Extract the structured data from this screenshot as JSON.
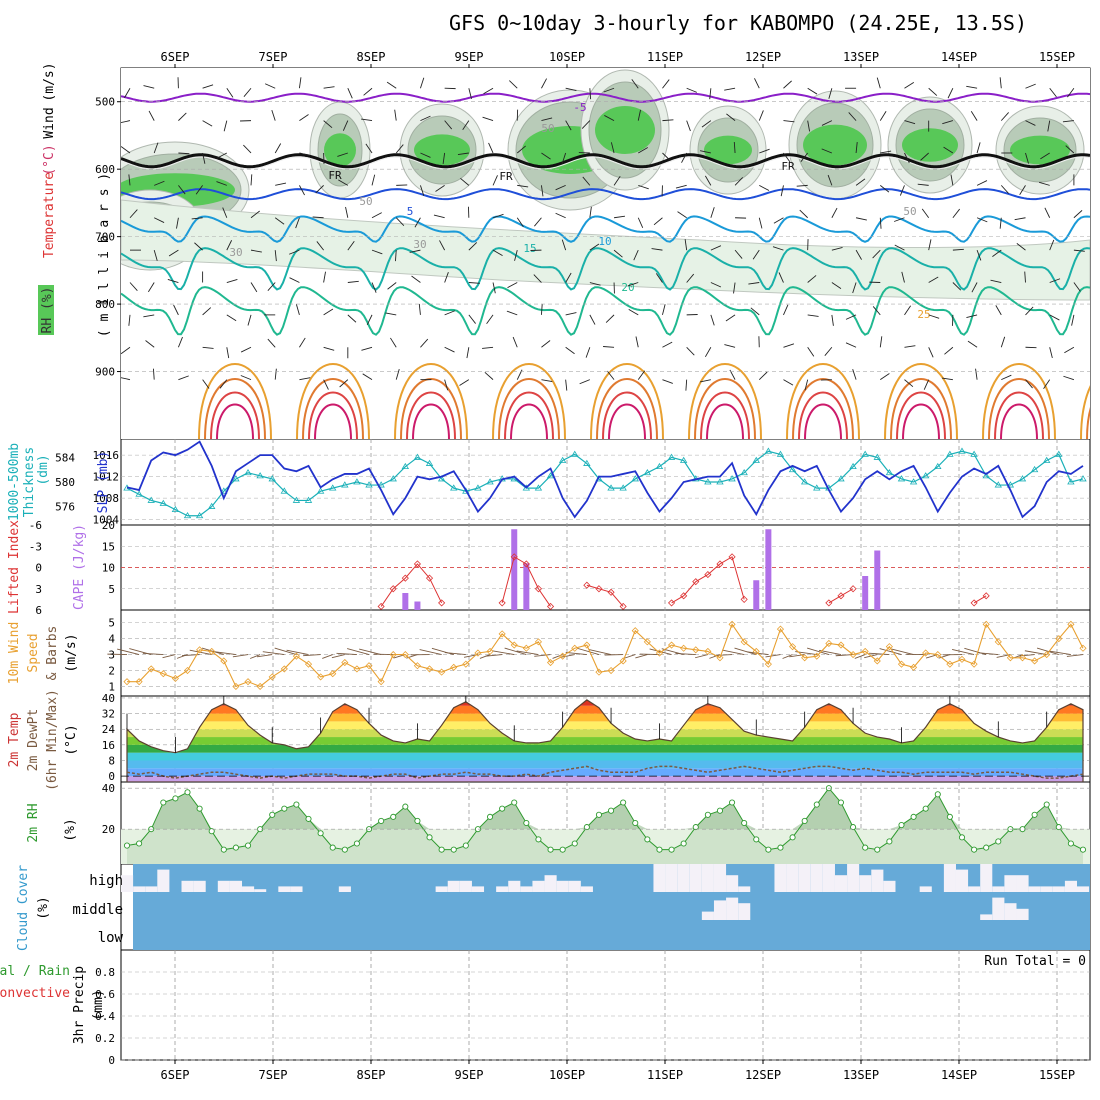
{
  "title": "GFS 0~10day 3-hourly for KABOMPO (24.25E, 13.5S)",
  "date_labels": [
    "6SEP",
    "7SEP",
    "8SEP",
    "9SEP",
    "10SEP",
    "11SEP",
    "12SEP",
    "13SEP",
    "14SEP",
    "15SEP"
  ],
  "colors": {
    "cyan": "#1ab0b8",
    "blue": "#2233cc",
    "purple_cape": "#b070e8",
    "red": "#dd3333",
    "orange": "#e8a030",
    "brown": "#7a5a40",
    "green": "#2f9a2f",
    "cloud_blue": "#66aad8",
    "cloud_white": "#f4f1f8",
    "rh_green": "#58c858",
    "rh_dark": "#a8bfa8"
  },
  "chart_data": [
    {
      "panel": "upper_air",
      "type": "heatmap",
      "ylabel_parts": [
        "Temperature",
        "(°C)",
        "Wind",
        "(m/s)"
      ],
      "ylabel_mb": "( m i l l i b a r s )",
      "rh_legend": "RH (%)",
      "yticks": [
        500,
        600,
        700,
        800,
        900
      ],
      "ylim": [
        1000,
        450
      ],
      "isotherm_labels": [
        "-5",
        "5",
        "10",
        "15",
        "20",
        "25",
        "FR",
        "FR",
        "FR",
        "30",
        "50",
        "30",
        "50",
        "50"
      ]
    },
    {
      "panel": "slp_thickness",
      "type": "line",
      "ylabel_left": "Thickness",
      "ylabel_left2": "1000-500mb",
      "ylabel_left_unit": "(dm)",
      "ylabel_right": "SLP (mb)",
      "yticks_left": [
        "584",
        "580",
        "576"
      ],
      "yticks_right": [
        "1016",
        "1012",
        "1008",
        "1004"
      ],
      "ylim_slp": [
        1003,
        1019
      ],
      "ylim_thk": [
        573,
        587
      ],
      "series": [
        {
          "name": "SLP",
          "values": [
            1010,
            1009.5,
            1015,
            1016.5,
            1016,
            1017,
            1018.5,
            1014,
            1008,
            1013,
            1014.5,
            1016,
            1016,
            1013.5,
            1013,
            1014,
            1010,
            1011.5,
            1012.5,
            1012.5,
            1013.5,
            1009.5,
            1005,
            1008,
            1012,
            1011.5,
            1012,
            1013,
            1009.5,
            1005.5,
            1008,
            1011.5,
            1012,
            1010,
            1012,
            1013.5,
            1008,
            1004.5,
            1007.5,
            1012,
            1012,
            1012.5,
            1013,
            1009,
            1005.5,
            1008,
            1011,
            1011.5,
            1012,
            1012,
            1014.5,
            1008.5,
            1005,
            1009.5,
            1013,
            1014,
            1013,
            1014,
            1009.5,
            1005.5,
            1008,
            1011.5,
            1013,
            1011.5,
            1013,
            1014,
            1010,
            1005.5,
            1009,
            1012,
            1013.5,
            1012.5,
            1014,
            1009.5,
            1004.5,
            1006.5,
            1011,
            1013,
            1012.5,
            1014
          ]
        },
        {
          "name": "Thickness",
          "values": [
            579,
            578,
            577,
            576.5,
            575.5,
            574.5,
            574.5,
            576,
            578.5,
            580.5,
            581.5,
            581,
            580.5,
            578.5,
            577,
            577,
            578.5,
            579,
            579.5,
            580,
            579.5,
            579.5,
            580.5,
            582.5,
            584,
            583,
            580.5,
            579,
            578.5,
            579,
            580,
            580.5,
            580.5,
            579,
            579,
            581,
            583.5,
            584.5,
            583,
            580.5,
            579,
            579,
            580.5,
            581.5,
            582.5,
            584,
            583.5,
            580.5,
            580,
            580,
            580.5,
            581.5,
            583.5,
            585,
            584.5,
            582,
            580,
            579,
            579,
            580.5,
            582.5,
            584.5,
            584,
            581.5,
            580.5,
            580,
            581,
            582.5,
            584.5,
            585,
            584.5,
            581,
            579.5,
            579.5,
            580.5,
            582,
            583.5,
            584.5,
            580,
            580.5
          ]
        }
      ]
    },
    {
      "panel": "cape_li",
      "type": "bar",
      "ylabel_left": "Lifted Index",
      "ylabel_right": "CAPE (J/kg)",
      "yticks_left": [
        "-6",
        "-3",
        "0",
        "3",
        "6"
      ],
      "yticks_right": [
        "20",
        "15",
        "10",
        "5"
      ],
      "ylim_cape": [
        0,
        20
      ],
      "ylim_li": [
        6,
        -6
      ],
      "cape_values": [
        0,
        0,
        0,
        0,
        0,
        0,
        0,
        0,
        0,
        0,
        0,
        0,
        0,
        0,
        0,
        0,
        0,
        0,
        0,
        0,
        0,
        0,
        0,
        4,
        2,
        0,
        0,
        0,
        0,
        0,
        0,
        0,
        19,
        11,
        0,
        0,
        0,
        0,
        0,
        0,
        0,
        0,
        0,
        0,
        0,
        0,
        0,
        0,
        0,
        0,
        0,
        0,
        7,
        19,
        0,
        0,
        0,
        0,
        0,
        0,
        0,
        8,
        14,
        0,
        0,
        0,
        0,
        0,
        0,
        0,
        0,
        0,
        0,
        0,
        0,
        0,
        0,
        0,
        0,
        0
      ],
      "li_values": [
        null,
        null,
        null,
        null,
        null,
        null,
        null,
        null,
        null,
        null,
        null,
        null,
        null,
        null,
        null,
        null,
        null,
        null,
        null,
        null,
        null,
        5.5,
        3,
        1.5,
        -0.5,
        1.5,
        5,
        null,
        null,
        null,
        null,
        5,
        -1.5,
        -0.5,
        3,
        5.5,
        null,
        null,
        2.5,
        3,
        3.5,
        5.5,
        null,
        null,
        null,
        5,
        4,
        2,
        1,
        -0.5,
        -1.5,
        4.5,
        null,
        null,
        null,
        null,
        null,
        null,
        5,
        4,
        3,
        null,
        null,
        null,
        null,
        null,
        null,
        null,
        null,
        null,
        5,
        4,
        null,
        null,
        null,
        null,
        null,
        null,
        null,
        null
      ]
    },
    {
      "panel": "wind10m",
      "type": "line",
      "ylabel_parts": [
        "10m Wind",
        "Speed",
        "& Barbs",
        "(m/s)"
      ],
      "yticks": [
        "1",
        "2",
        "3",
        "4",
        "5"
      ],
      "ylim": [
        0.4,
        5.8
      ],
      "series": [
        {
          "name": "Speed",
          "values": [
            1.3,
            1.3,
            2.1,
            1.8,
            1.5,
            2.0,
            3.3,
            3.2,
            2.6,
            1.0,
            1.3,
            1.0,
            1.6,
            2.1,
            2.9,
            2.4,
            1.6,
            1.8,
            2.5,
            2.1,
            2.3,
            1.3,
            3.0,
            3.0,
            2.3,
            2.1,
            1.9,
            2.2,
            2.4,
            3.1,
            3.2,
            4.3,
            3.6,
            3.4,
            3.8,
            2.5,
            2.9,
            3.4,
            3.6,
            1.9,
            2.0,
            2.6,
            4.5,
            3.8,
            3.1,
            3.6,
            3.4,
            3.3,
            3.2,
            2.8,
            4.9,
            3.8,
            3.2,
            2.4,
            4.6,
            3.5,
            2.8,
            2.9,
            3.7,
            3.6,
            3.0,
            3.2,
            2.6,
            3.5,
            2.4,
            2.2,
            3.1,
            3.0,
            2.4,
            2.7,
            2.4,
            4.9,
            3.8,
            2.8,
            2.8,
            2.6,
            3.0,
            4.0,
            4.9,
            3.4
          ]
        }
      ]
    },
    {
      "panel": "temp2m",
      "type": "area",
      "ylabel_parts": [
        "2m Temp",
        "2m DewPt",
        "(6hr Min/Max)",
        "(°C)"
      ],
      "yticks": [
        "40",
        "32",
        "24",
        "16",
        "8",
        "0"
      ],
      "ylim": [
        -3,
        41
      ],
      "series": [
        {
          "name": "Temp",
          "values": [
            24,
            18,
            15,
            13,
            12,
            14,
            25,
            34,
            37,
            34,
            26,
            21,
            17,
            16,
            14,
            15,
            22,
            33,
            37,
            34,
            27,
            21,
            18,
            17,
            19,
            18,
            26,
            35,
            38,
            34,
            27,
            22,
            18,
            17,
            17,
            18,
            25,
            34,
            39,
            35,
            27,
            22,
            19,
            18,
            19,
            18,
            26,
            34,
            37,
            35,
            29,
            23,
            21,
            20,
            19,
            18,
            25,
            34,
            37,
            34,
            27,
            22,
            20,
            19,
            17,
            18,
            25,
            34,
            37,
            34,
            27,
            23,
            20,
            18,
            17,
            18,
            25,
            34,
            37,
            34
          ]
        },
        {
          "name": "DewPt",
          "values": [
            2,
            1,
            2,
            0,
            -1,
            0,
            1,
            2,
            2,
            1,
            0,
            -1,
            0,
            -1,
            0,
            1,
            1,
            1,
            0,
            0,
            -1,
            0,
            1,
            1,
            -1,
            0,
            1,
            1,
            2,
            1,
            1,
            0,
            0,
            1,
            0,
            2,
            3,
            4,
            5,
            3,
            2,
            2,
            2,
            4,
            5,
            5,
            4,
            3,
            2,
            3,
            4,
            5,
            4,
            3,
            2,
            3,
            4,
            5,
            5,
            4,
            3,
            4,
            3,
            2,
            2,
            1,
            2,
            2,
            2,
            2,
            1,
            2,
            2,
            2,
            1,
            0,
            -1,
            -1,
            0,
            1
          ]
        }
      ]
    },
    {
      "panel": "rh2m",
      "type": "area",
      "ylabel_left": "2m RH",
      "yunit": "(%)",
      "yticks": [
        "40",
        "20"
      ],
      "ylim": [
        3,
        43
      ],
      "series": [
        {
          "name": "RH",
          "values": [
            12,
            13,
            20,
            33,
            35,
            38,
            30,
            19,
            10,
            11,
            12,
            20,
            27,
            30,
            32,
            25,
            18,
            11,
            10,
            13,
            20,
            24,
            26,
            31,
            24,
            16,
            10,
            10,
            12,
            20,
            26,
            30,
            33,
            23,
            15,
            10,
            10,
            13,
            21,
            27,
            29,
            33,
            23,
            15,
            10,
            10,
            13,
            21,
            27,
            29,
            33,
            23,
            15,
            10,
            11,
            16,
            24,
            32,
            40,
            33,
            21,
            11,
            10,
            14,
            22,
            26,
            30,
            37,
            26,
            16,
            10,
            11,
            14,
            20,
            20,
            27,
            32,
            21,
            13,
            10
          ]
        }
      ]
    },
    {
      "panel": "cloud",
      "type": "bar",
      "ylabel_left": "Cloud Cover",
      "yunit": "(%)",
      "levels": [
        "high",
        "middle",
        "low"
      ],
      "series": [
        {
          "name": "high",
          "values": [
            60,
            20,
            20,
            80,
            0,
            40,
            40,
            0,
            40,
            40,
            20,
            10,
            0,
            20,
            20,
            0,
            0,
            0,
            20,
            0,
            0,
            0,
            0,
            0,
            0,
            0,
            20,
            40,
            40,
            20,
            0,
            20,
            40,
            20,
            40,
            60,
            40,
            40,
            20,
            0,
            0,
            0,
            0,
            0,
            100,
            100,
            100,
            100,
            100,
            100,
            60,
            20,
            0,
            0,
            100,
            100,
            100,
            100,
            100,
            60,
            100,
            60,
            80,
            40,
            0,
            0,
            20,
            0,
            100,
            80,
            20,
            100,
            20,
            60,
            60,
            20,
            20,
            20,
            40,
            20
          ]
        },
        {
          "name": "middle",
          "values": [
            0,
            0,
            0,
            0,
            0,
            0,
            0,
            0,
            0,
            0,
            0,
            0,
            0,
            0,
            0,
            0,
            0,
            0,
            0,
            0,
            0,
            0,
            0,
            0,
            0,
            0,
            0,
            0,
            0,
            0,
            0,
            0,
            0,
            0,
            0,
            0,
            0,
            0,
            0,
            0,
            0,
            0,
            0,
            0,
            0,
            0,
            0,
            0,
            30,
            70,
            80,
            60,
            0,
            0,
            0,
            0,
            0,
            0,
            0,
            0,
            0,
            0,
            0,
            0,
            0,
            0,
            0,
            0,
            0,
            0,
            0,
            20,
            80,
            60,
            40,
            0,
            0,
            0,
            0,
            0
          ]
        },
        {
          "name": "low",
          "values": [
            0,
            0,
            0,
            0,
            0,
            0,
            0,
            0,
            0,
            0,
            0,
            0,
            0,
            0,
            0,
            0,
            0,
            0,
            0,
            0,
            0,
            0,
            0,
            0,
            0,
            0,
            0,
            0,
            0,
            0,
            0,
            0,
            0,
            0,
            0,
            0,
            0,
            0,
            0,
            0,
            0,
            0,
            0,
            0,
            0,
            0,
            0,
            0,
            0,
            0,
            0,
            0,
            0,
            0,
            0,
            0,
            0,
            0,
            0,
            0,
            0,
            0,
            0,
            0,
            0,
            0,
            0,
            0,
            0,
            0,
            0,
            0,
            0,
            0,
            0,
            0,
            0,
            0,
            0,
            0
          ]
        }
      ]
    },
    {
      "panel": "precip",
      "type": "bar",
      "ylabel_parts": [
        "3hr Precip",
        "(mm)"
      ],
      "ylabel_left_parts": [
        "Total / Rain",
        "Convective"
      ],
      "run_total": "Run Total = 0",
      "yticks": [
        "0.8",
        "0.6",
        "0.4",
        "0.2",
        "0"
      ],
      "ylim": [
        0,
        0.9
      ],
      "values": [
        0,
        0,
        0,
        0,
        0,
        0,
        0,
        0,
        0,
        0,
        0,
        0,
        0,
        0,
        0,
        0,
        0,
        0,
        0,
        0,
        0,
        0,
        0,
        0,
        0,
        0,
        0,
        0,
        0,
        0,
        0,
        0,
        0,
        0,
        0,
        0,
        0,
        0,
        0,
        0,
        0,
        0,
        0,
        0,
        0,
        0,
        0,
        0,
        0,
        0,
        0,
        0,
        0,
        0,
        0,
        0,
        0,
        0,
        0,
        0,
        0,
        0,
        0,
        0,
        0,
        0,
        0,
        0,
        0,
        0,
        0,
        0,
        0,
        0,
        0,
        0,
        0,
        0,
        0,
        0
      ]
    }
  ]
}
